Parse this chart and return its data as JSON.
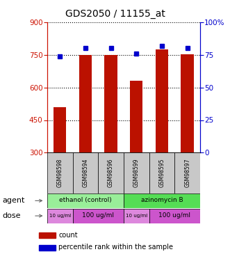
{
  "title": "GDS2050 / 11155_at",
  "samples": [
    "GSM98598",
    "GSM98594",
    "GSM98596",
    "GSM98599",
    "GSM98595",
    "GSM98597"
  ],
  "counts": [
    510,
    748,
    750,
    630,
    775,
    752
  ],
  "percentiles": [
    74,
    80,
    80,
    76,
    82,
    80
  ],
  "ylim_left": [
    300,
    900
  ],
  "ylim_right": [
    0,
    100
  ],
  "yticks_left": [
    300,
    450,
    600,
    750,
    900
  ],
  "yticks_right": [
    0,
    25,
    50,
    75,
    100
  ],
  "bar_color": "#bb1100",
  "dot_color": "#0000cc",
  "left_axis_color": "#cc1100",
  "right_axis_color": "#0000cc",
  "sample_box_color": "#c8c8c8",
  "agent_color_1": "#99ee99",
  "agent_color_2": "#55dd55",
  "dose_color_light": "#dd88dd",
  "dose_color_dark": "#cc55cc",
  "legend_count_color": "#bb1100",
  "legend_dot_color": "#0000cc"
}
